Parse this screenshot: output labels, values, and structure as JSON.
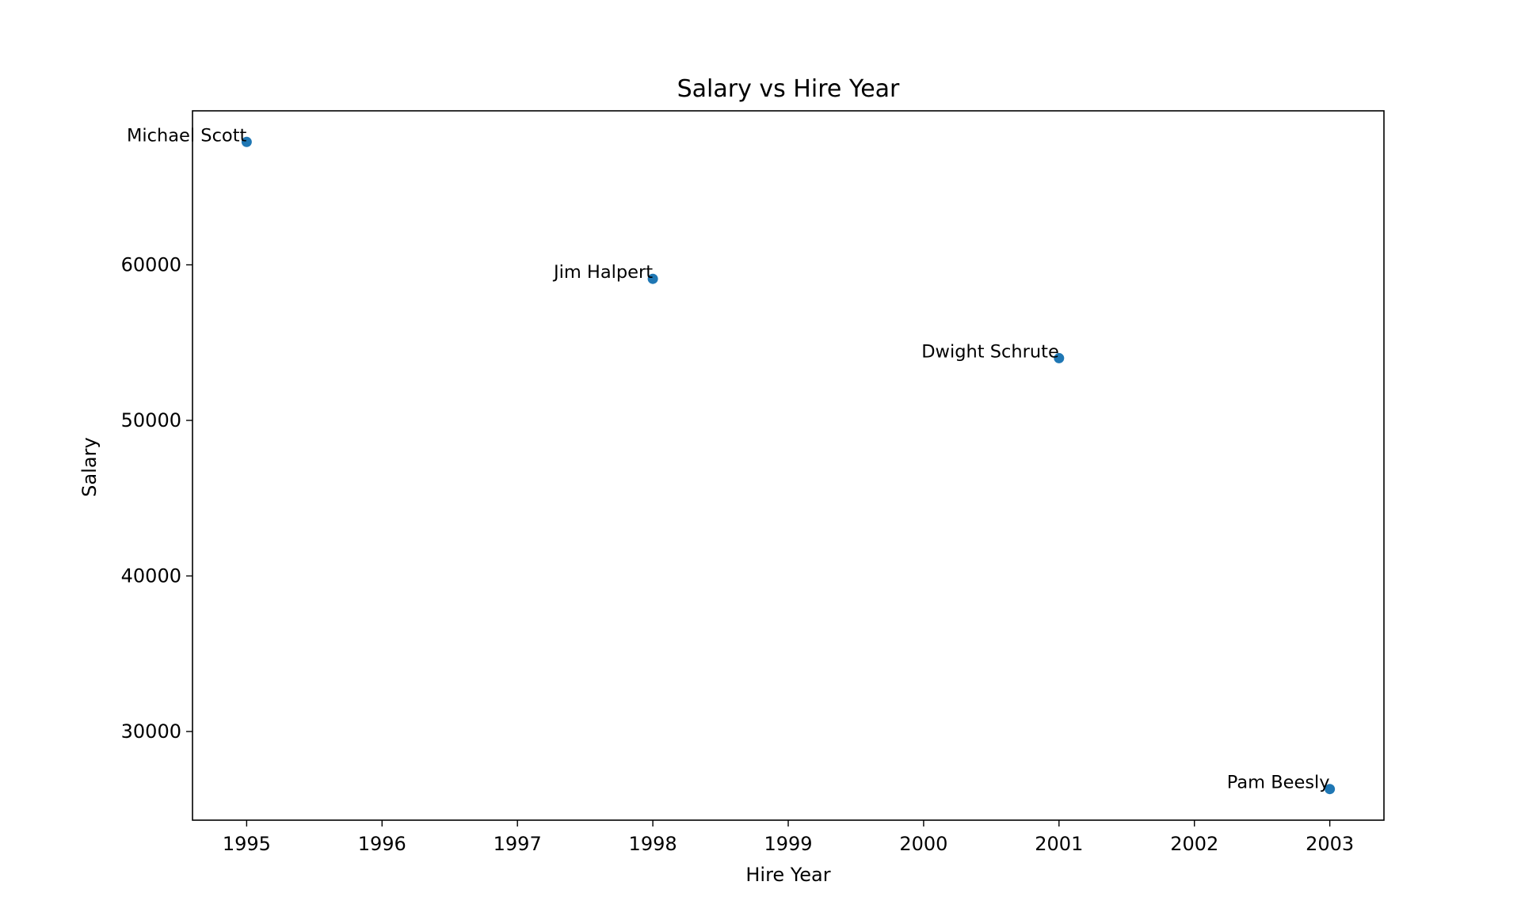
{
  "chart_data": {
    "type": "scatter",
    "title": "Salary vs Hire Year",
    "xlabel": "Hire Year",
    "ylabel": "Salary",
    "xlim": [
      1994.6,
      2003.4
    ],
    "ylim": [
      24300,
      69900
    ],
    "xticks": [
      "1995",
      "1996",
      "1997",
      "1998",
      "1999",
      "2000",
      "2001",
      "2002",
      "2003"
    ],
    "yticks": [
      "30000",
      "40000",
      "50000",
      "60000"
    ],
    "grid": false,
    "marker_color": "#1f77b4",
    "points": [
      {
        "label": "Michael Scott",
        "x": 1995,
        "y": 67900
      },
      {
        "label": "Jim Halpert",
        "x": 1998,
        "y": 59100
      },
      {
        "label": "Dwight Schrute",
        "x": 2001,
        "y": 54000
      },
      {
        "label": "Pam Beesly",
        "x": 2003,
        "y": 26300
      }
    ]
  }
}
